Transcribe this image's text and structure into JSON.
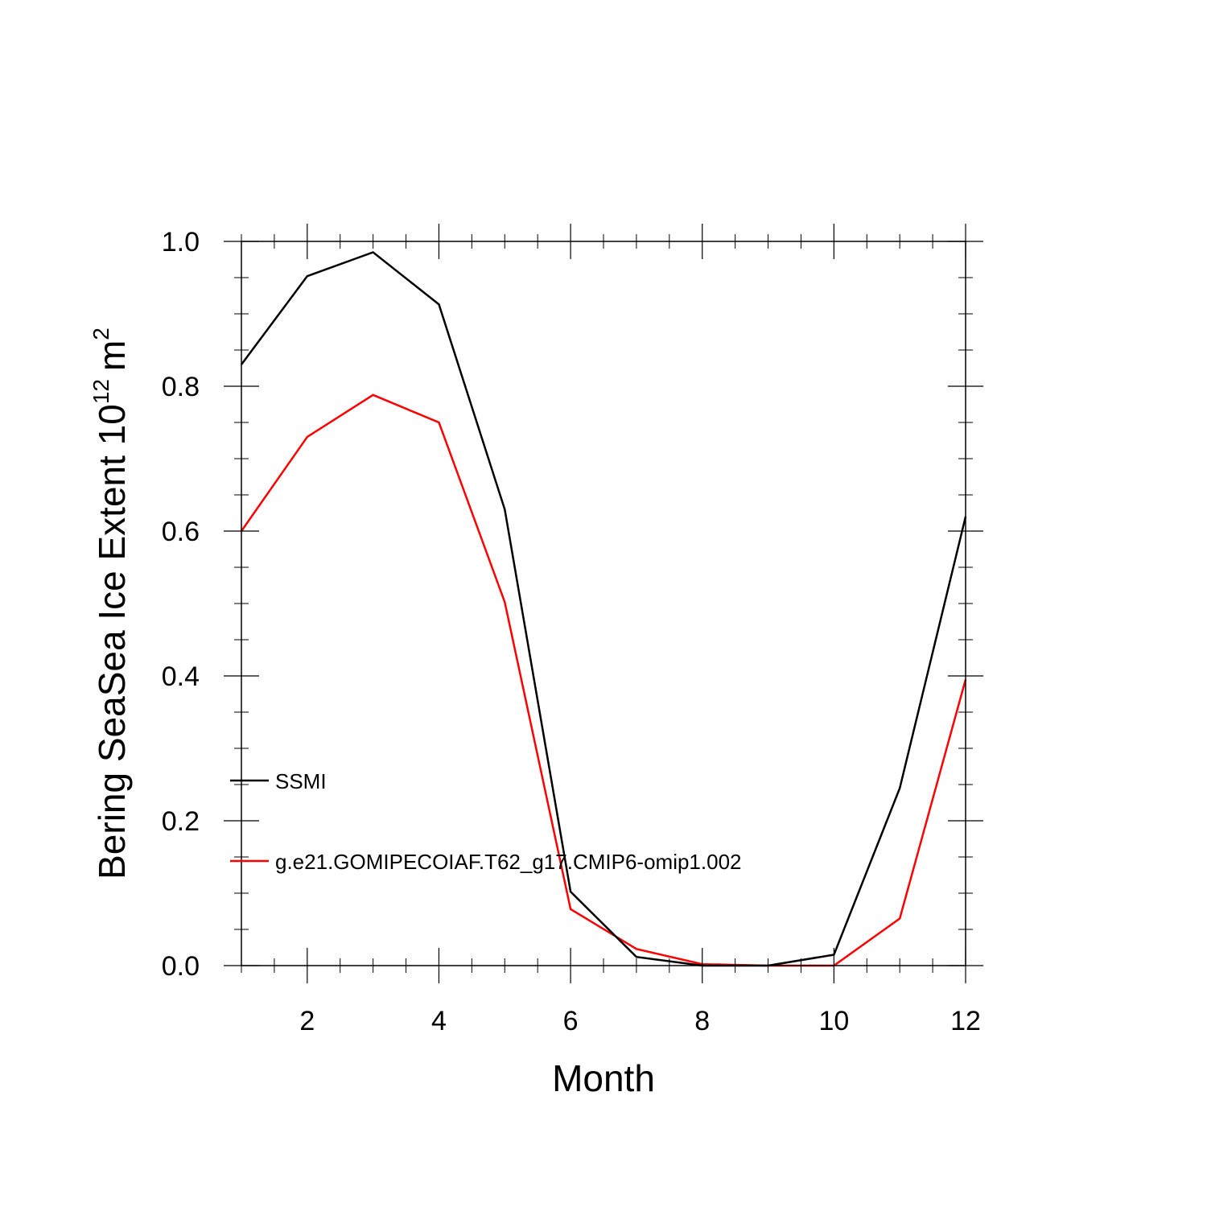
{
  "chart_data": {
    "type": "line",
    "title": "",
    "xlabel": "Month",
    "ylabel": {
      "prefix": "Bering SeaSea Ice Extent 10",
      "exponent": "12",
      "unit": "m",
      "unit_exponent": "2"
    },
    "xlim": [
      1,
      12
    ],
    "ylim": [
      0,
      1.0
    ],
    "x_ticks": [
      2,
      4,
      6,
      8,
      10,
      12
    ],
    "x_tick_labels": [
      "2",
      "4",
      "6",
      "8",
      "10",
      "12"
    ],
    "y_ticks": [
      0,
      0.2,
      0.4,
      0.6,
      0.8,
      1.0
    ],
    "y_tick_labels": [
      "0.0",
      "0.2",
      "0.4",
      "0.6",
      "0.8",
      "1.0"
    ],
    "grid": false,
    "legend_position": "left-inside-lower",
    "x": [
      1,
      2,
      3,
      4,
      5,
      6,
      7,
      8,
      9,
      10,
      11,
      12
    ],
    "series": [
      {
        "name": "SSMI",
        "color": "#000000",
        "values": [
          0.83,
          0.952,
          0.985,
          0.913,
          0.63,
          0.102,
          0.012,
          0.0,
          0.0,
          0.015,
          0.245,
          0.62
        ]
      },
      {
        "name": "g.e21.GOMIPECOIAF.T62_g17.CMIP6-omip1.002",
        "color": "#ff0000",
        "values": [
          0.6,
          0.73,
          0.788,
          0.75,
          0.502,
          0.078,
          0.023,
          0.002,
          0.0,
          0.0,
          0.065,
          0.395
        ]
      }
    ]
  }
}
